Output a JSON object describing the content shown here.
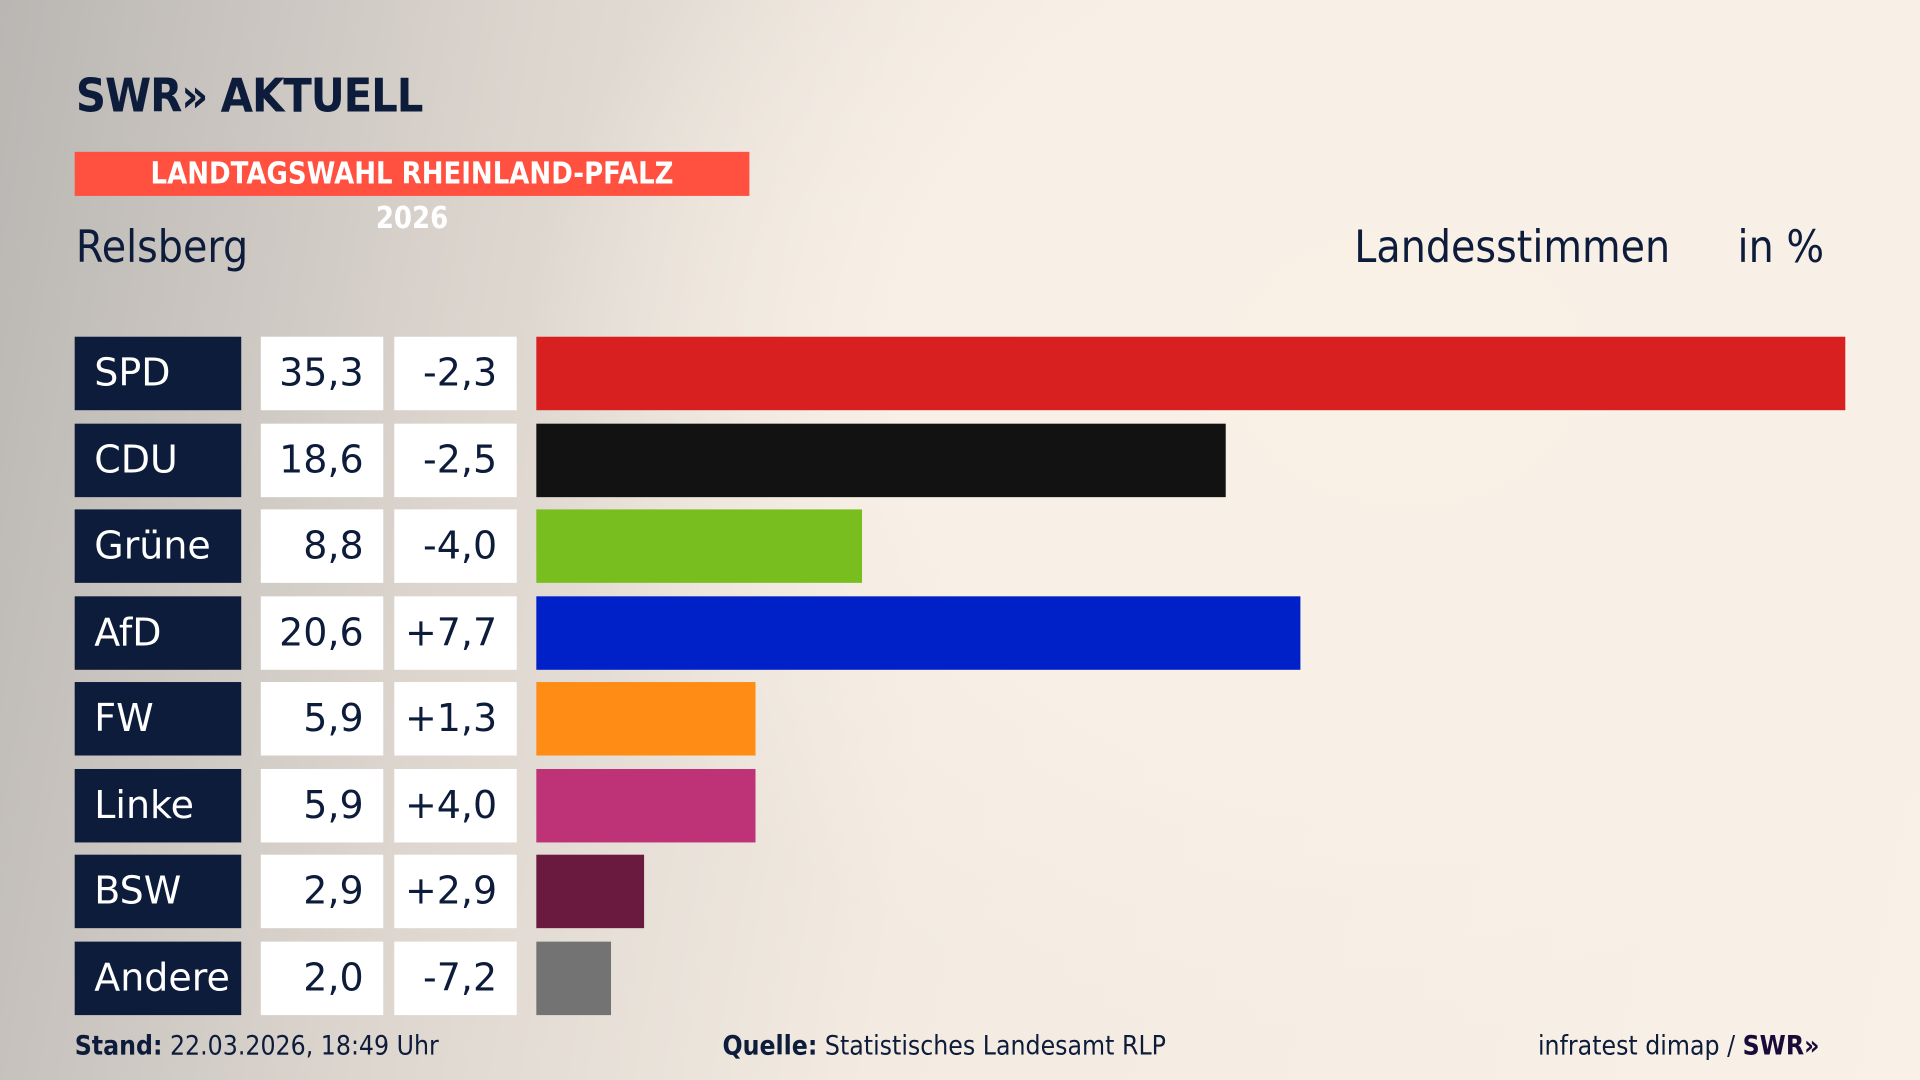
{
  "header": {
    "logo": "SWR» AKTUELL",
    "tag": "LANDTAGSWAHL RHEINLAND-PFALZ 2026",
    "region": "Relsberg",
    "measure": "Landesstimmen",
    "unit": "in %"
  },
  "chart_data": {
    "type": "bar",
    "orientation": "horizontal",
    "categories": [
      "SPD",
      "CDU",
      "Grüne",
      "AfD",
      "FW",
      "Linke",
      "BSW",
      "Andere"
    ],
    "values": [
      35.3,
      18.6,
      8.8,
      20.6,
      5.9,
      5.9,
      2.9,
      2.0
    ],
    "value_labels": [
      "35,3",
      "18,6",
      "8,8",
      "20,6",
      "5,9",
      "5,9",
      "2,9",
      "2,0"
    ],
    "diff_labels": [
      "-2,3",
      "-2,5",
      "-4,0",
      "+7,7",
      "+1,3",
      "+4,0",
      "+2,9",
      "-7,2"
    ],
    "colors": [
      "#d82020",
      "#121212",
      "#78be1e",
      "#0020c8",
      "#ff8c14",
      "#be3278",
      "#6a1a3e",
      "#737373"
    ],
    "xlim": [
      0,
      35.3
    ]
  },
  "footer": {
    "stand_label": "Stand:",
    "stand_value": "22.03.2026, 18:49 Uhr",
    "source_label": "Quelle:",
    "source_value": "Statistisches Landesamt RLP",
    "credit": "infratest dimap / ",
    "credit_logo": "SWR»"
  }
}
